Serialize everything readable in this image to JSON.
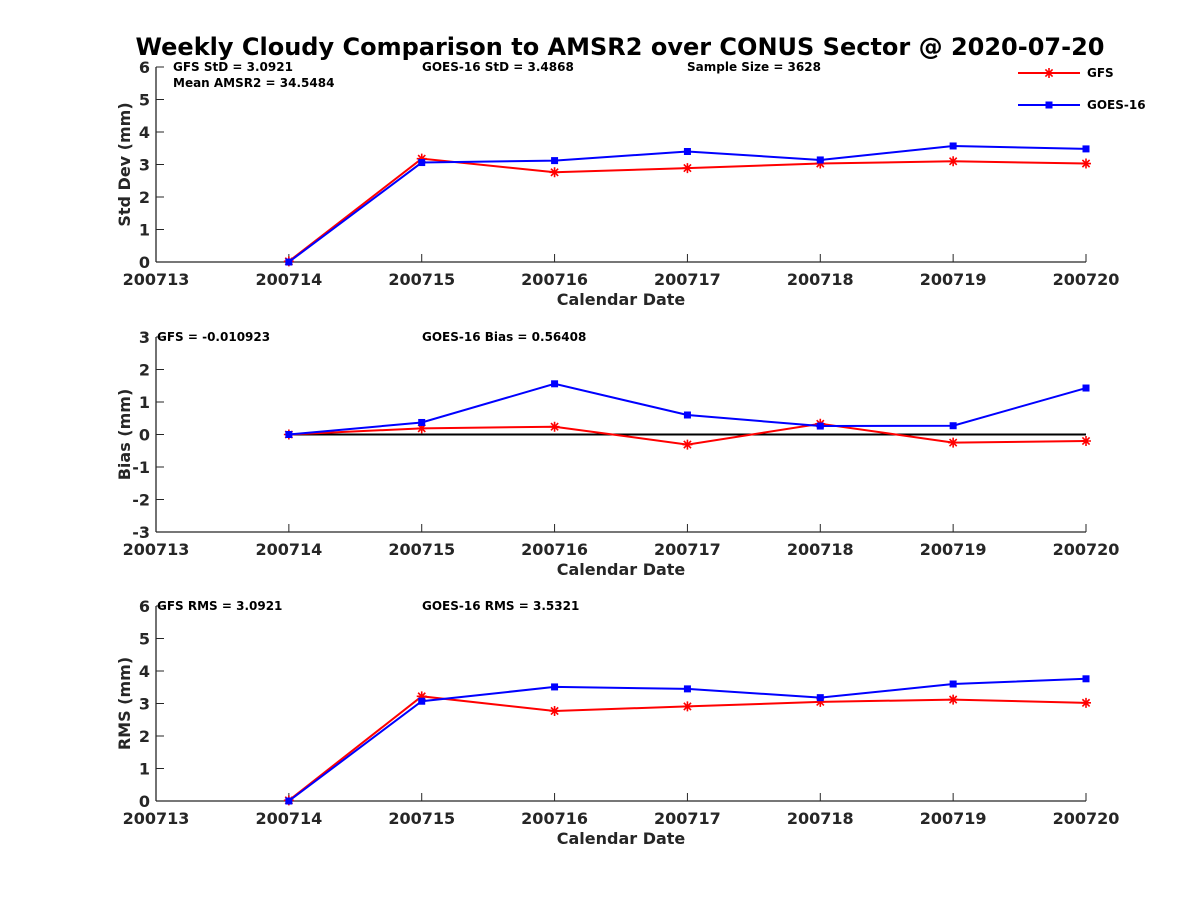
{
  "chart_data": {
    "type": "line",
    "title": "Weekly Cloudy Comparison to AMSR2 over CONUS Sector @ 2020-07-20",
    "categories": [
      "200713",
      "200714",
      "200715",
      "200716",
      "200717",
      "200718",
      "200719",
      "200720"
    ],
    "legend": {
      "position": "top-right",
      "entries": [
        {
          "name": "GFS",
          "color": "#ff0000",
          "marker": "star"
        },
        {
          "name": "GOES-16",
          "color": "#0000ff",
          "marker": "square"
        }
      ]
    },
    "panels": [
      {
        "id": "std",
        "ylabel": "Std Dev (mm)",
        "xlabel": "Calendar Date",
        "ylim": [
          0,
          6
        ],
        "yticks": [
          "0",
          "1",
          "2",
          "3",
          "4",
          "5",
          "6"
        ],
        "annotations": [
          "GFS StD = 3.0921",
          "GOES-16 StD = 3.4868",
          "Sample Size = 3628",
          "Mean AMSR2 = 34.5484"
        ],
        "zero_line": false,
        "series": [
          {
            "name": "GFS",
            "color": "#ff0000",
            "marker": "star",
            "values": [
              null,
              0.02,
              3.18,
              2.76,
              2.89,
              3.03,
              3.1,
              3.03
            ]
          },
          {
            "name": "GOES-16",
            "color": "#0000ff",
            "marker": "square",
            "values": [
              null,
              0.0,
              3.06,
              3.12,
              3.4,
              3.14,
              3.57,
              3.48
            ]
          }
        ]
      },
      {
        "id": "bias",
        "ylabel": "Bias (mm)",
        "xlabel": "Calendar Date",
        "ylim": [
          -3,
          3
        ],
        "yticks": [
          "-3",
          "-2",
          "-1",
          "0",
          "1",
          "2",
          "3"
        ],
        "annotations": [
          "GFS = -0.010923",
          "GOES-16 Bias  = 0.56408"
        ],
        "zero_line": true,
        "series": [
          {
            "name": "GFS",
            "color": "#ff0000",
            "marker": "star",
            "values": [
              null,
              0.0,
              0.19,
              0.24,
              -0.31,
              0.33,
              -0.25,
              -0.2
            ]
          },
          {
            "name": "GOES-16",
            "color": "#0000ff",
            "marker": "square",
            "values": [
              null,
              0.0,
              0.37,
              1.56,
              0.6,
              0.26,
              0.27,
              1.43
            ]
          }
        ]
      },
      {
        "id": "rms",
        "ylabel": "RMS (mm)",
        "xlabel": "Calendar Date",
        "ylim": [
          0,
          6
        ],
        "yticks": [
          "0",
          "1",
          "2",
          "3",
          "4",
          "5",
          "6"
        ],
        "annotations": [
          "GFS RMS = 3.0921",
          "GOES-16 RMS = 3.5321"
        ],
        "zero_line": false,
        "series": [
          {
            "name": "GFS",
            "color": "#ff0000",
            "marker": "star",
            "values": [
              null,
              0.02,
              3.22,
              2.77,
              2.91,
              3.05,
              3.12,
              3.02
            ]
          },
          {
            "name": "GOES-16",
            "color": "#0000ff",
            "marker": "square",
            "values": [
              null,
              0.0,
              3.07,
              3.51,
              3.45,
              3.18,
              3.6,
              3.76
            ]
          }
        ]
      }
    ]
  }
}
